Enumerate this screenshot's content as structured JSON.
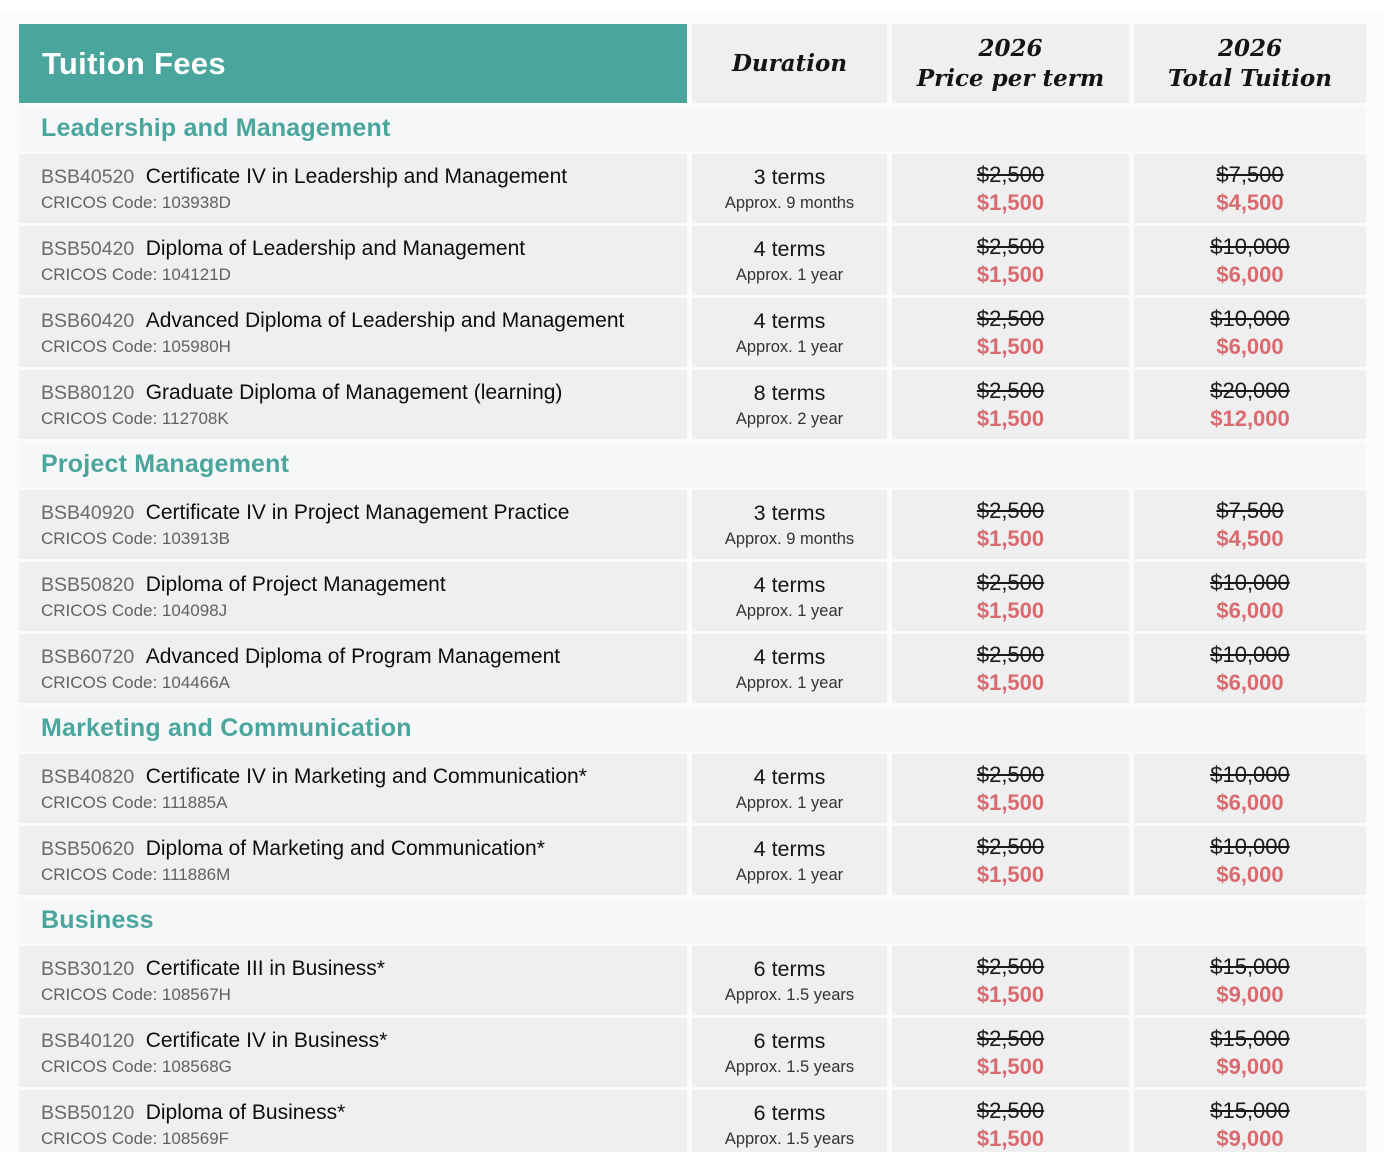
{
  "colors": {
    "teal": "#4AA59C",
    "discount_red": "#D96A6F",
    "cell_bg": "#EFEFEF",
    "section_band_bg": "#F6F7F8"
  },
  "header": {
    "title": "Tuition Fees",
    "col_duration": "Duration",
    "col_price_line1": "2026",
    "col_price_line2": "Price per term",
    "col_total_line1": "2026",
    "col_total_line2": "Total Tuition"
  },
  "sections": [
    {
      "title": "Leadership and Management",
      "rows": [
        {
          "code": "BSB40520",
          "name": "Certificate IV in Leadership and Management",
          "cricos": "CRICOS Code: 103938D",
          "terms": "3 terms",
          "approx": "Approx. 9 months",
          "price_old": "$2,500",
          "price_new": "$1,500",
          "total_old": "$7,500",
          "total_new": "$4,500"
        },
        {
          "code": "BSB50420",
          "name": "Diploma of Leadership and Management",
          "cricos": "CRICOS Code: 104121D",
          "terms": "4 terms",
          "approx": "Approx. 1 year",
          "price_old": "$2,500",
          "price_new": "$1,500",
          "total_old": "$10,000",
          "total_new": "$6,000"
        },
        {
          "code": "BSB60420",
          "name": "Advanced Diploma of Leadership and Management",
          "cricos": "CRICOS Code: 105980H",
          "terms": "4 terms",
          "approx": "Approx. 1 year",
          "price_old": "$2,500",
          "price_new": "$1,500",
          "total_old": "$10,000",
          "total_new": "$6,000"
        },
        {
          "code": "BSB80120",
          "name": "Graduate Diploma of Management (learning)",
          "cricos": "CRICOS Code: 112708K",
          "terms": "8 terms",
          "approx": "Approx. 2 year",
          "price_old": "$2,500",
          "price_new": "$1,500",
          "total_old": "$20,000",
          "total_new": "$12,000"
        }
      ]
    },
    {
      "title": "Project Management",
      "rows": [
        {
          "code": "BSB40920",
          "name": "Certificate IV in Project Management Practice",
          "cricos": "CRICOS Code: 103913B",
          "terms": "3 terms",
          "approx": "Approx. 9 months",
          "price_old": "$2,500",
          "price_new": "$1,500",
          "total_old": "$7,500",
          "total_new": "$4,500"
        },
        {
          "code": "BSB50820",
          "name": "Diploma of Project Management",
          "cricos": "CRICOS Code: 104098J",
          "terms": "4 terms",
          "approx": "Approx. 1 year",
          "price_old": "$2,500",
          "price_new": "$1,500",
          "total_old": "$10,000",
          "total_new": "$6,000"
        },
        {
          "code": "BSB60720",
          "name": "Advanced Diploma of Program Management",
          "cricos": "CRICOS Code: 104466A",
          "terms": "4 terms",
          "approx": "Approx. 1 year",
          "price_old": "$2,500",
          "price_new": "$1,500",
          "total_old": "$10,000",
          "total_new": "$6,000"
        }
      ]
    },
    {
      "title": "Marketing and Communication",
      "rows": [
        {
          "code": "BSB40820",
          "name": "Certificate IV in Marketing and Communication*",
          "cricos": "CRICOS Code: 111885A",
          "terms": "4 terms",
          "approx": "Approx. 1 year",
          "price_old": "$2,500",
          "price_new": "$1,500",
          "total_old": "$10,000",
          "total_new": "$6,000"
        },
        {
          "code": "BSB50620",
          "name": "Diploma of Marketing and Communication*",
          "cricos": "CRICOS Code: 111886M",
          "terms": "4 terms",
          "approx": "Approx. 1 year",
          "price_old": "$2,500",
          "price_new": "$1,500",
          "total_old": "$10,000",
          "total_new": "$6,000"
        }
      ]
    },
    {
      "title": "Business",
      "rows": [
        {
          "code": "BSB30120",
          "name": "Certificate III in Business*",
          "cricos": "CRICOS Code: 108567H",
          "terms": "6 terms",
          "approx": "Approx. 1.5 years",
          "price_old": "$2,500",
          "price_new": "$1,500",
          "total_old": "$15,000",
          "total_new": "$9,000"
        },
        {
          "code": "BSB40120",
          "name": "Certificate IV in Business*",
          "cricos": "CRICOS Code: 108568G",
          "terms": "6 terms",
          "approx": "Approx. 1.5 years",
          "price_old": "$2,500",
          "price_new": "$1,500",
          "total_old": "$15,000",
          "total_new": "$9,000"
        },
        {
          "code": "BSB50120",
          "name": "Diploma of Business*",
          "cricos": "CRICOS Code: 108569F",
          "terms": "6 terms",
          "approx": "Approx. 1.5 years",
          "price_old": "$2,500",
          "price_new": "$1,500",
          "total_old": "$15,000",
          "total_new": "$9,000"
        }
      ]
    }
  ]
}
